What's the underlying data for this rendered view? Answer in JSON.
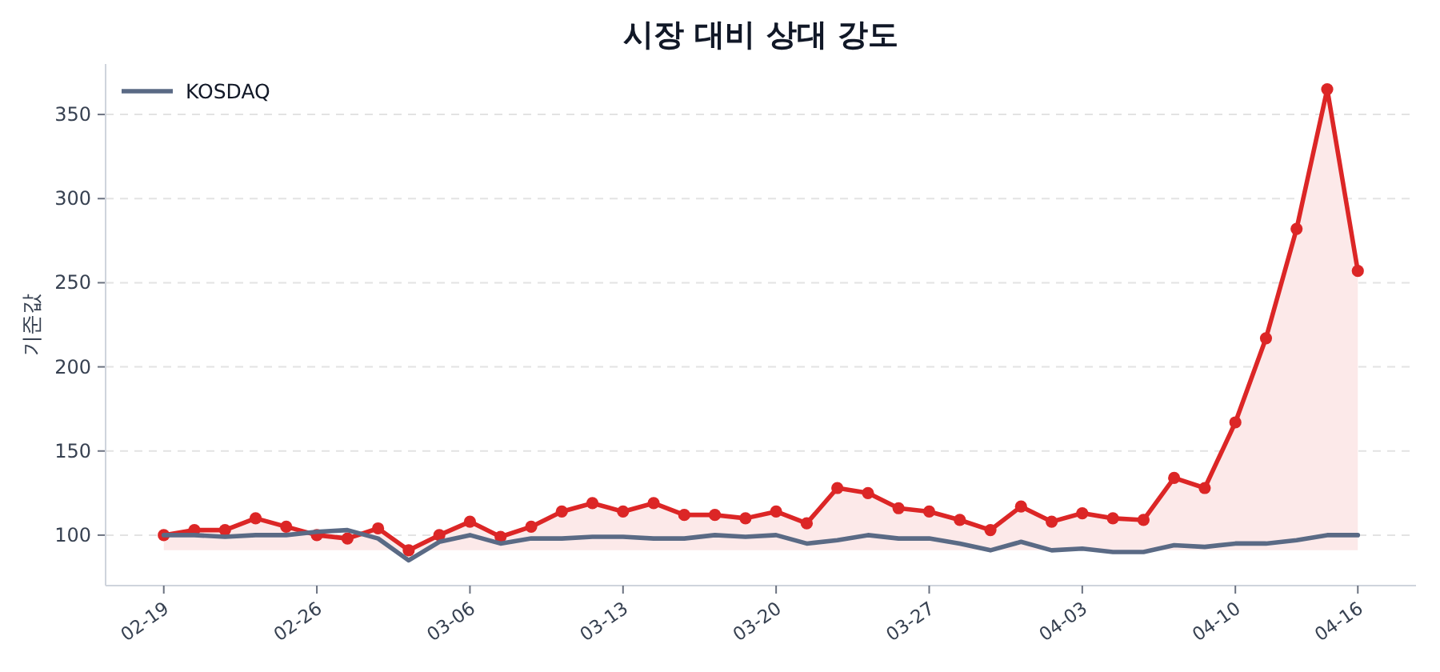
{
  "chart_data": {
    "type": "line",
    "title": "시장 대비 상대 강도",
    "ylabel": "기준값",
    "categories": [
      "02-19",
      null,
      null,
      null,
      null,
      "02-26",
      null,
      null,
      null,
      null,
      "03-06",
      null,
      null,
      null,
      null,
      "03-13",
      null,
      null,
      null,
      null,
      "03-20",
      null,
      null,
      null,
      null,
      "03-27",
      null,
      null,
      null,
      null,
      "04-03",
      null,
      null,
      null,
      null,
      "04-10",
      null,
      null,
      null,
      "04-16"
    ],
    "series": [
      {
        "type": "area",
        "color": "#dc2626",
        "marker": "circle",
        "values": [
          100,
          103,
          103,
          110,
          105,
          100,
          98,
          104,
          91,
          100,
          108,
          99,
          105,
          114,
          119,
          114,
          119,
          112,
          112,
          110,
          114,
          107,
          128,
          125,
          116,
          114,
          109,
          103,
          117,
          108,
          113,
          110,
          109,
          134,
          128,
          167,
          217,
          282,
          365,
          257
        ]
      },
      {
        "name": "KOSDAQ",
        "color": "#5a6a85",
        "marker": "none",
        "values": [
          100,
          100,
          99,
          100,
          100,
          102,
          103,
          98,
          85,
          96,
          100,
          95,
          98,
          98,
          99,
          99,
          98,
          98,
          100,
          99,
          100,
          95,
          97,
          100,
          98,
          98,
          95,
          91,
          96,
          91,
          92,
          90,
          90,
          94,
          93,
          95,
          95,
          97,
          100,
          100
        ]
      }
    ],
    "ylim": [
      70,
      380
    ],
    "yticks": [
      100,
      150,
      200,
      250,
      300,
      350
    ],
    "grid": "y",
    "legend": "top left",
    "line_style": "solid"
  }
}
